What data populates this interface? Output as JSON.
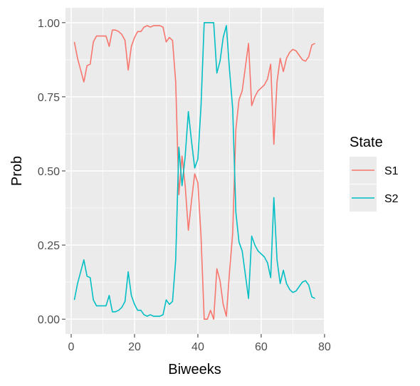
{
  "chart_data": {
    "type": "line",
    "xlabel": "Biweeks",
    "ylabel": "Prob",
    "xlim": [
      -1.8,
      79.8
    ],
    "ylim": [
      -0.05,
      1.05
    ],
    "x_ticks": [
      0,
      20,
      40,
      60,
      80
    ],
    "y_ticks": [
      0.0,
      0.25,
      0.5,
      0.75,
      1.0
    ],
    "y_tick_labels": [
      "0.00",
      "0.25",
      "0.50",
      "0.75",
      "1.00"
    ],
    "grid": true,
    "legend": {
      "title": "State",
      "placement": "right"
    },
    "series": [
      {
        "name": "S1",
        "color": "#F8766D",
        "x": [
          1,
          2,
          3,
          4,
          5,
          6,
          7,
          8,
          9,
          10,
          11,
          12,
          13,
          14,
          15,
          16,
          17,
          18,
          19,
          20,
          21,
          22,
          23,
          24,
          25,
          26,
          27,
          28,
          29,
          30,
          31,
          32,
          33,
          34,
          35,
          36,
          37,
          38,
          39,
          40,
          41,
          42,
          43,
          44,
          45,
          46,
          47,
          48,
          49,
          50,
          51,
          52,
          53,
          54,
          55,
          56,
          57,
          58,
          59,
          60,
          61,
          62,
          63,
          64,
          65,
          66,
          67,
          68,
          69,
          70,
          71,
          72,
          73,
          74,
          75,
          76,
          77
        ],
        "y": [
          0.935,
          0.88,
          0.84,
          0.8,
          0.855,
          0.86,
          0.935,
          0.955,
          0.955,
          0.955,
          0.955,
          0.92,
          0.975,
          0.975,
          0.97,
          0.96,
          0.94,
          0.84,
          0.92,
          0.95,
          0.97,
          0.97,
          0.985,
          0.99,
          0.985,
          0.99,
          0.99,
          0.99,
          0.985,
          0.935,
          0.95,
          0.94,
          0.8,
          0.42,
          0.55,
          0.45,
          0.3,
          0.4,
          0.49,
          0.46,
          0.28,
          0.0,
          0.0,
          0.03,
          0.0,
          0.17,
          0.13,
          0.05,
          0.01,
          0.16,
          0.29,
          0.64,
          0.74,
          0.77,
          0.85,
          0.93,
          0.72,
          0.75,
          0.77,
          0.78,
          0.79,
          0.81,
          0.86,
          0.59,
          0.8,
          0.88,
          0.835,
          0.88,
          0.9,
          0.91,
          0.905,
          0.89,
          0.875,
          0.87,
          0.885,
          0.925,
          0.93
        ]
      },
      {
        "name": "S2",
        "color": "#00BFC4",
        "x": [
          1,
          2,
          3,
          4,
          5,
          6,
          7,
          8,
          9,
          10,
          11,
          12,
          13,
          14,
          15,
          16,
          17,
          18,
          19,
          20,
          21,
          22,
          23,
          24,
          25,
          26,
          27,
          28,
          29,
          30,
          31,
          32,
          33,
          34,
          35,
          36,
          37,
          38,
          39,
          40,
          41,
          42,
          43,
          44,
          45,
          46,
          47,
          48,
          49,
          50,
          51,
          52,
          53,
          54,
          55,
          56,
          57,
          58,
          59,
          60,
          61,
          62,
          63,
          64,
          65,
          66,
          67,
          68,
          69,
          70,
          71,
          72,
          73,
          74,
          75,
          76,
          77
        ],
        "y": [
          0.065,
          0.12,
          0.16,
          0.2,
          0.145,
          0.14,
          0.065,
          0.045,
          0.045,
          0.045,
          0.045,
          0.08,
          0.025,
          0.025,
          0.03,
          0.04,
          0.06,
          0.16,
          0.08,
          0.05,
          0.03,
          0.03,
          0.015,
          0.01,
          0.015,
          0.01,
          0.01,
          0.01,
          0.015,
          0.065,
          0.05,
          0.06,
          0.2,
          0.58,
          0.45,
          0.55,
          0.7,
          0.6,
          0.51,
          0.54,
          0.72,
          1.0,
          1.0,
          1.0,
          1.0,
          0.83,
          0.87,
          0.95,
          0.99,
          0.84,
          0.71,
          0.36,
          0.26,
          0.23,
          0.15,
          0.07,
          0.28,
          0.25,
          0.23,
          0.22,
          0.21,
          0.19,
          0.14,
          0.41,
          0.2,
          0.12,
          0.165,
          0.12,
          0.1,
          0.09,
          0.095,
          0.11,
          0.125,
          0.13,
          0.115,
          0.075,
          0.07
        ]
      }
    ]
  }
}
